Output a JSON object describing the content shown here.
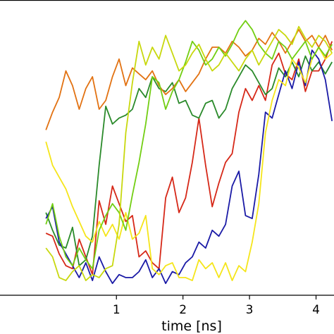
{
  "chart_data": {
    "type": "line",
    "title": "",
    "xlabel": "time [ns]",
    "ylabel": "",
    "xlim": [
      -0.75,
      4.27
    ],
    "ylim": [
      0.0,
      1.0
    ],
    "x_ticks": [
      {
        "value": 1,
        "label": "1"
      },
      {
        "value": 2,
        "label": "2"
      },
      {
        "value": 3,
        "label": "3"
      },
      {
        "value": 4,
        "label": "4"
      }
    ],
    "grid": false,
    "legend": "none",
    "x": [
      -0.06,
      0.04,
      0.14,
      0.24,
      0.34,
      0.44,
      0.54,
      0.64,
      0.74,
      0.84,
      0.94,
      1.04,
      1.14,
      1.24,
      1.34,
      1.44,
      1.54,
      1.64,
      1.74,
      1.84,
      1.94,
      2.04,
      2.14,
      2.24,
      2.34,
      2.44,
      2.54,
      2.64,
      2.74,
      2.84,
      2.94,
      3.04,
      3.14,
      3.24,
      3.34,
      3.44,
      3.54,
      3.64,
      3.74,
      3.84,
      3.94,
      4.04,
      4.14,
      4.24
    ],
    "series": [
      {
        "color": "#d62818",
        "values": [
          0.21,
          0.2,
          0.14,
          0.1,
          0.09,
          0.19,
          0.13,
          0.07,
          0.32,
          0.24,
          0.37,
          0.31,
          0.25,
          0.27,
          0.13,
          0.15,
          0.11,
          0.09,
          0.33,
          0.4,
          0.28,
          0.33,
          0.45,
          0.6,
          0.44,
          0.3,
          0.38,
          0.45,
          0.48,
          0.62,
          0.7,
          0.66,
          0.71,
          0.66,
          0.78,
          0.82,
          0.75,
          0.73,
          0.8,
          0.69,
          0.76,
          0.76,
          0.8,
          0.86
        ]
      },
      {
        "color": "#2a8a2a",
        "values": [
          0.28,
          0.22,
          0.17,
          0.16,
          0.23,
          0.1,
          0.12,
          0.2,
          0.44,
          0.64,
          0.58,
          0.6,
          0.61,
          0.63,
          0.7,
          0.67,
          0.74,
          0.7,
          0.69,
          0.72,
          0.65,
          0.66,
          0.61,
          0.6,
          0.65,
          0.66,
          0.6,
          0.63,
          0.7,
          0.74,
          0.78,
          0.76,
          0.72,
          0.68,
          0.7,
          0.77,
          0.74,
          0.79,
          0.74,
          0.81,
          0.76,
          0.79,
          0.75,
          0.79
        ]
      },
      {
        "color": "#1a1aa6",
        "values": [
          0.26,
          0.3,
          0.18,
          0.14,
          0.1,
          0.06,
          0.11,
          0.05,
          0.13,
          0.08,
          0.04,
          0.07,
          0.06,
          0.06,
          0.08,
          0.12,
          0.06,
          0.09,
          0.04,
          0.08,
          0.07,
          0.11,
          0.13,
          0.18,
          0.16,
          0.22,
          0.2,
          0.24,
          0.37,
          0.42,
          0.27,
          0.26,
          0.41,
          0.62,
          0.6,
          0.68,
          0.76,
          0.7,
          0.79,
          0.71,
          0.83,
          0.8,
          0.73,
          0.59
        ]
      },
      {
        "color": "#f5e51a",
        "values": [
          0.52,
          0.44,
          0.4,
          0.36,
          0.3,
          0.25,
          0.2,
          0.18,
          0.25,
          0.2,
          0.24,
          0.19,
          0.28,
          0.19,
          0.21,
          0.27,
          0.09,
          0.07,
          0.1,
          0.11,
          0.06,
          0.06,
          0.05,
          0.12,
          0.09,
          0.11,
          0.06,
          0.11,
          0.05,
          0.1,
          0.08,
          0.18,
          0.31,
          0.55,
          0.66,
          0.73,
          0.71,
          0.8,
          0.77,
          0.72,
          0.8,
          0.84,
          0.8,
          0.82
        ]
      },
      {
        "color": "#e27212",
        "values": [
          0.56,
          0.62,
          0.67,
          0.76,
          0.71,
          0.63,
          0.7,
          0.74,
          0.63,
          0.66,
          0.74,
          0.8,
          0.71,
          0.77,
          0.75,
          0.73,
          0.76,
          0.71,
          0.68,
          0.7,
          0.73,
          0.69,
          0.72,
          0.75,
          0.8,
          0.84,
          0.84,
          0.82,
          0.86,
          0.84,
          0.81,
          0.83,
          0.87,
          0.85,
          0.89,
          0.86,
          0.82,
          0.86,
          0.9,
          0.86,
          0.88,
          0.84,
          0.88,
          0.83
        ]
      },
      {
        "color": "#72ce12",
        "values": [
          0.24,
          0.31,
          0.2,
          0.13,
          0.1,
          0.16,
          0.12,
          0.09,
          0.22,
          0.27,
          0.31,
          0.28,
          0.22,
          0.34,
          0.45,
          0.58,
          0.74,
          0.72,
          0.63,
          0.69,
          0.73,
          0.79,
          0.86,
          0.83,
          0.78,
          0.8,
          0.84,
          0.81,
          0.85,
          0.9,
          0.93,
          0.9,
          0.85,
          0.82,
          0.8,
          0.86,
          0.84,
          0.8,
          0.83,
          0.86,
          0.8,
          0.84,
          0.81,
          0.85
        ]
      },
      {
        "color": "#c8d80e",
        "values": [
          0.16,
          0.13,
          0.06,
          0.05,
          0.08,
          0.1,
          0.05,
          0.07,
          0.06,
          0.09,
          0.1,
          0.24,
          0.55,
          0.72,
          0.86,
          0.78,
          0.84,
          0.8,
          0.88,
          0.82,
          0.76,
          0.78,
          0.82,
          0.85,
          0.8,
          0.76,
          0.78,
          0.82,
          0.79,
          0.76,
          0.8,
          0.83,
          0.78,
          0.82,
          0.86,
          0.9,
          0.88,
          0.85,
          0.91,
          0.87,
          0.84,
          0.88,
          0.86,
          0.82
        ]
      }
    ]
  }
}
